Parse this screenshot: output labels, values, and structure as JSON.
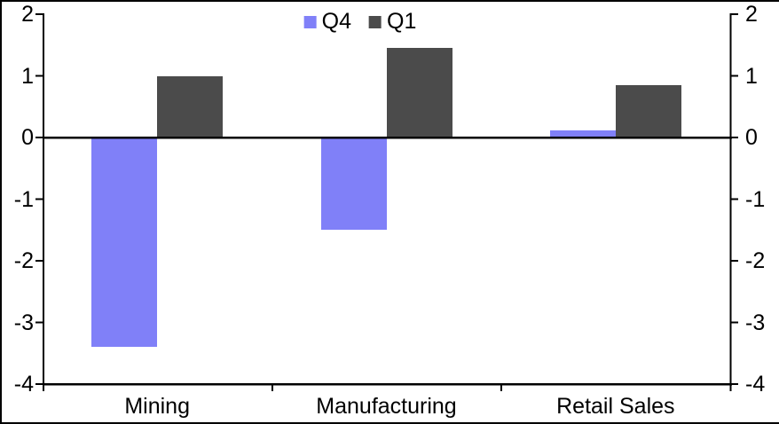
{
  "chart_data": {
    "type": "bar",
    "title": "",
    "xlabel": "",
    "ylabel": "",
    "categories": [
      "Mining",
      "Manufacturing",
      "Retail Sales"
    ],
    "series": [
      {
        "name": "Q4",
        "color": "#8080F8",
        "values": [
          -3.4,
          -1.5,
          0.12
        ]
      },
      {
        "name": "Q1",
        "color": "#4B4B4B",
        "values": [
          1.0,
          1.45,
          0.85
        ]
      }
    ],
    "ylim": [
      -4,
      2
    ],
    "yticks": [
      2,
      1,
      0,
      -1,
      -2,
      -3,
      -4
    ],
    "dual_y_axis": true,
    "grid": false,
    "legend_position": "top-center",
    "axis_color": "#000000",
    "background_color": "#FFFFFF"
  }
}
